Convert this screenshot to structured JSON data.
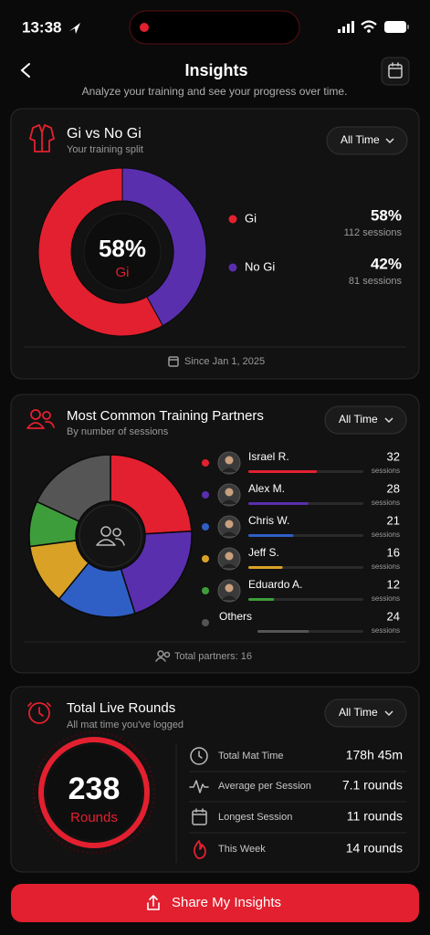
{
  "status_bar": {
    "time": "13:38"
  },
  "header": {
    "title": "Insights",
    "subtitle": "Analyze your training and see your progress over time."
  },
  "gi_split": {
    "title": "Gi vs No Gi",
    "subtitle": "Your training split",
    "filter": "All Time",
    "segments": [
      {
        "name": "Gi",
        "value": 58,
        "value_label": "58%",
        "sessions": "112 sessions",
        "color": "#e3202f"
      },
      {
        "name": "No Gi",
        "value": 42,
        "value_label": "42%",
        "sessions": "81 sessions",
        "color": "#5a2fae"
      }
    ],
    "footer": "Since Jan 1, 2025"
  },
  "partners": {
    "title": "Most Common Training Partners",
    "subtitle": "By number of sessions",
    "filter": "All Time",
    "unit": "sessions",
    "people": [
      {
        "name": "Israel R.",
        "sessions": 32,
        "color": "#e3202f"
      },
      {
        "name": "Alex M.",
        "sessions": 28,
        "color": "#5a2fae"
      },
      {
        "name": "Chris W.",
        "sessions": 21,
        "color": "#2f5fc4"
      },
      {
        "name": "Jeff S.",
        "sessions": 16,
        "color": "#d9a227"
      },
      {
        "name": "Eduardo A.",
        "sessions": 12,
        "color": "#3e9d3b"
      },
      {
        "name": "Others",
        "sessions": 24,
        "color": "#555555"
      }
    ],
    "footer": "Total partners: 16"
  },
  "live_rounds": {
    "title": "Total Live Rounds",
    "subtitle": "All mat time you've logged",
    "filter": "All Time",
    "total": 238,
    "unit": "Rounds",
    "stats": [
      {
        "label": "Total Mat Time",
        "value": "178h 45m"
      },
      {
        "label": "Average per Session",
        "value": "7.1 rounds"
      },
      {
        "label": "Longest Session",
        "value": "11 rounds"
      },
      {
        "label": "This Week",
        "value": "14 rounds"
      }
    ]
  },
  "share_button": {
    "label": "Share My Insights"
  }
}
